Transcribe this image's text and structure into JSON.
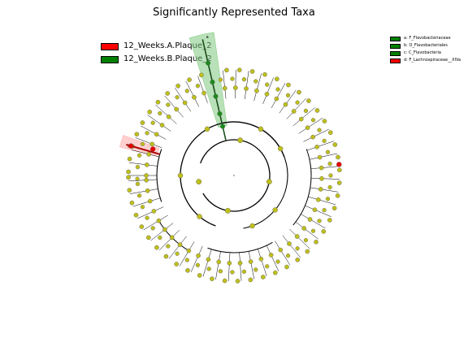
{
  "title": "Significantly Represented Taxa",
  "legend": [
    {
      "label": "12_Weeks.A.Plaque_2",
      "color": "#ff0000"
    },
    {
      "label": "12_Weeks.B.Plaque_2",
      "color": "#008000"
    }
  ],
  "clade_legend": [
    {
      "label": "a: F_Flavobacteriaceae",
      "color": "#008000"
    },
    {
      "label": "b: O_Flavobacteriales",
      "color": "#008000"
    },
    {
      "label": "c: C_Flavobacteria",
      "color": "#008000"
    },
    {
      "label": "d: F_Lachnospiraceae__XIVa",
      "color": "#ff0000"
    }
  ],
  "highlight_letters": {
    "green": "a",
    "red": "d"
  },
  "colors": {
    "node_default": "#bfbf1a",
    "node_green": "#1a8c1a",
    "node_red": "#e60000",
    "highlight_green": "#7fc97f",
    "highlight_red": "#ffaaaa"
  }
}
